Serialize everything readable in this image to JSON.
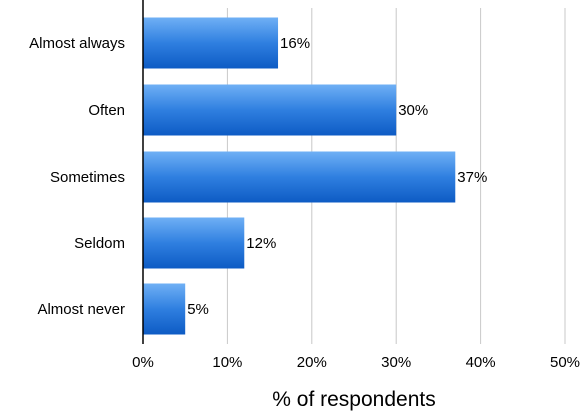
{
  "chart_data": {
    "type": "bar",
    "orientation": "horizontal",
    "categories": [
      "Almost always",
      "Often",
      "Sometimes",
      "Seldom",
      "Almost never"
    ],
    "values": [
      16,
      30,
      37,
      12,
      5
    ],
    "data_labels": [
      "16%",
      "30%",
      "37%",
      "12%",
      "5%"
    ],
    "xlim": [
      0,
      50
    ],
    "x_ticks": [
      0,
      10,
      20,
      30,
      40,
      50
    ],
    "x_tick_labels": [
      "0%",
      "10%",
      "20%",
      "30%",
      "40%",
      "50%"
    ],
    "xlabel": "% of respondents",
    "ylabel": "",
    "grid": "vertical",
    "legend": "none",
    "colors": {
      "bar_light": "#6fb0f5",
      "bar_mid": "#2f7fe0",
      "bar_dark": "#0d5bc4",
      "grid": "#c8c8c8",
      "axis": "#000000"
    }
  }
}
